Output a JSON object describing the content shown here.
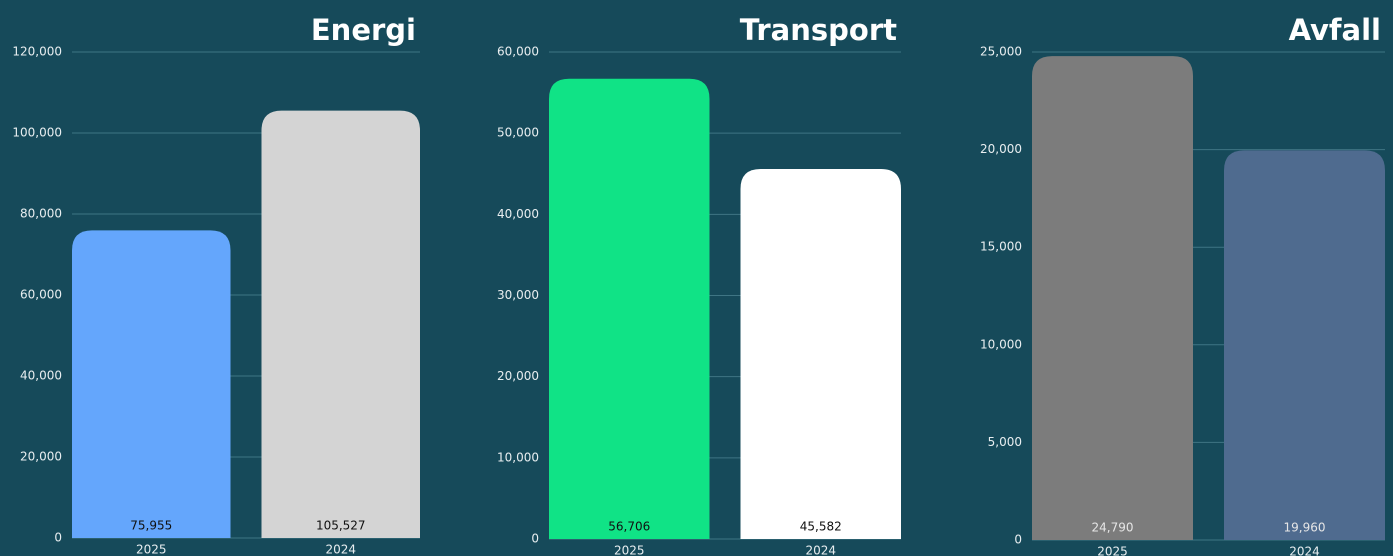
{
  "chart_data": [
    {
      "type": "bar",
      "title": "Energi",
      "categories": [
        "2025",
        "2024"
      ],
      "values": [
        75955,
        105527
      ],
      "value_labels": [
        "75,955",
        "105,527"
      ],
      "colors": [
        "#64a6fc",
        "#d4d4d4"
      ],
      "value_label_color": "#111111",
      "ylim": [
        0,
        120000
      ],
      "yticks": [
        0,
        {
          "value": 20000,
          "label": "20,000"
        },
        {
          "value": 40000,
          "label": "40,000"
        },
        {
          "value": 60000,
          "label": "60,000"
        },
        {
          "value": 80000,
          "label": "80,000"
        },
        {
          "value": 100000,
          "label": "100,000"
        },
        {
          "value": 120000,
          "label": "120,000"
        }
      ],
      "grid": true
    },
    {
      "type": "bar",
      "title": "Transport",
      "categories": [
        "2025",
        "2024"
      ],
      "values": [
        56706,
        45582
      ],
      "value_labels": [
        "56,706",
        "45,582"
      ],
      "colors": [
        "#10e386",
        "#ffffff"
      ],
      "value_label_color": "#111111",
      "ylim": [
        0,
        60000
      ],
      "yticks": [
        0,
        {
          "value": 10000,
          "label": "10,000"
        },
        {
          "value": 20000,
          "label": "20,000"
        },
        {
          "value": 30000,
          "label": "30,000"
        },
        {
          "value": 40000,
          "label": "40,000"
        },
        {
          "value": 50000,
          "label": "50,000"
        },
        {
          "value": 60000,
          "label": "60,000"
        }
      ],
      "grid": true
    },
    {
      "type": "bar",
      "title": "Avfall",
      "categories": [
        "2025",
        "2024"
      ],
      "values": [
        24790,
        19960
      ],
      "value_labels": [
        "24,790",
        "19,960"
      ],
      "colors": [
        "#7c7c7c",
        "#4f6b8f"
      ],
      "value_label_color": "#e6e6e6",
      "ylim": [
        0,
        25000
      ],
      "yticks": [
        0,
        {
          "value": 5000,
          "label": "5,000"
        },
        {
          "value": 10000,
          "label": "10,000"
        },
        {
          "value": 15000,
          "label": "15,000"
        },
        {
          "value": 20000,
          "label": "20,000"
        },
        {
          "value": 25000,
          "label": "25,000"
        }
      ],
      "grid": true
    }
  ]
}
